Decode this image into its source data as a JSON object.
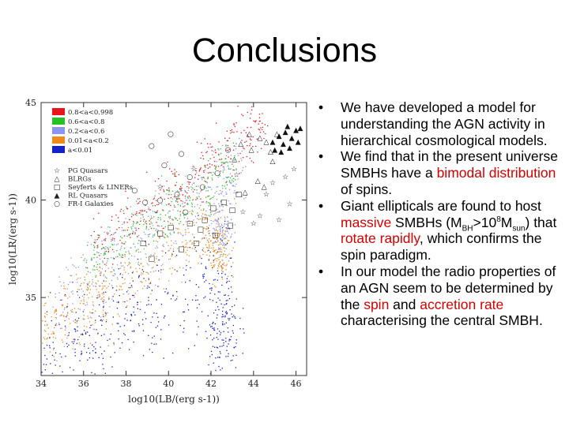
{
  "slide": {
    "title": "Conclusions"
  },
  "bullets": [
    {
      "parts": [
        {
          "text": "We have developed a model for understanding the AGN activity in hierarchical cosmological models."
        }
      ]
    },
    {
      "parts": [
        {
          "text": "We find that in the present universe SMBHs have a "
        },
        {
          "text": "bimodal distribution",
          "highlight": true
        },
        {
          "text": " of spins."
        }
      ]
    },
    {
      "parts": [
        {
          "text": "Giant ellipticals are found to host "
        },
        {
          "text": "massive",
          "highlight": true
        },
        {
          "text": " SMBHs (M"
        },
        {
          "text": "BH",
          "sub": true
        },
        {
          "text": ">10"
        },
        {
          "text": "8",
          "sup": true
        },
        {
          "text": "M"
        },
        {
          "text": "sun",
          "sub": true
        },
        {
          "text": ") that "
        },
        {
          "text": "rotate rapidly",
          "highlight": true
        },
        {
          "text": ", which confirms the spin paradigm."
        }
      ]
    },
    {
      "parts": [
        {
          "text": "In our model the radio properties of an AGN seem to be determined by the "
        },
        {
          "text": "spin",
          "highlight": true
        },
        {
          "text": " and "
        },
        {
          "text": "accretion rate",
          "highlight": true
        },
        {
          "text": " characterising the central SMBH."
        }
      ]
    }
  ],
  "chart_data": {
    "type": "scatter",
    "title": "",
    "xlabel": "log10(LB/(erg s-1))",
    "ylabel": "log10(LR/(erg s-1))",
    "xlim": [
      34,
      46.5
    ],
    "ylim": [
      31,
      45
    ],
    "x_ticks": [
      "34",
      "36",
      "38",
      "40",
      "42",
      "44",
      "46"
    ],
    "y_ticks": [
      "35",
      "40",
      "45"
    ],
    "legend_spin": [
      {
        "label": "0.8<a<0.998",
        "color": "#e8141c"
      },
      {
        "label": "0.6<a<0.8",
        "color": "#22c322"
      },
      {
        "label": "0.2<a<0.6",
        "color": "#8b94f0"
      },
      {
        "label": "0.01<a<0.2",
        "color": "#f08a1c"
      },
      {
        "label": "a<0.01",
        "color": "#1420c8"
      }
    ],
    "legend_markers": [
      {
        "label": "PG Quasars",
        "symbol": "☆"
      },
      {
        "label": "BLRGs",
        "symbol": "△"
      },
      {
        "label": "Seyferts & LINERs",
        "symbol": "□"
      },
      {
        "label": "RL Quasars",
        "symbol": "▲"
      },
      {
        "label": "FR-I Galaxies",
        "symbol": "○"
      }
    ],
    "series": [
      {
        "name": "0.8<a<0.998",
        "color": "#e8141c",
        "line": [
          [
            36.2,
            37.2
          ],
          [
            44.5,
            44.0
          ]
        ],
        "spread": 0.75,
        "n": 340,
        "xrange": [
          36.5,
          44.5
        ]
      },
      {
        "name": "0.6<a<0.8",
        "color": "#22c322",
        "line": [
          [
            35.6,
            36.4
          ],
          [
            43.0,
            41.5
          ]
        ],
        "spread": 0.7,
        "n": 260,
        "xrange": [
          36.0,
          43.2
        ]
      },
      {
        "name": "0.2<a<0.6",
        "color": "#8b94f0",
        "line": [
          [
            34.6,
            34.6
          ],
          [
            43.0,
            41.0
          ]
        ],
        "spread": 1.1,
        "n": 420,
        "xrange": [
          34.6,
          43.5
        ]
      },
      {
        "name": "0.01<a<0.2",
        "color": "#f08a1c",
        "line": [
          [
            34.0,
            33.3
          ],
          [
            42.0,
            38.6
          ]
        ],
        "spread": 0.9,
        "n": 380,
        "xrange": [
          34.0,
          42.2
        ]
      },
      {
        "name": "a<0.01",
        "color": "#1420c8",
        "line": [
          [
            34.0,
            31.8
          ],
          [
            42.5,
            36.5
          ]
        ],
        "spread": 1.3,
        "n": 380,
        "xrange": [
          34.0,
          43.0
        ]
      },
      {
        "name": "0.01<a<0.2 cluster",
        "color": "#f08a1c",
        "cluster": [
          42.3,
          37.5
        ],
        "spread": 0.6,
        "n": 140
      },
      {
        "name": "0.2<a<0.6 cluster",
        "color": "#8b94f0",
        "cluster": [
          42.5,
          38.7
        ],
        "spread": 0.55,
        "n": 100
      },
      {
        "name": "a<0.01 cluster",
        "color": "#1420c8",
        "cluster": [
          42.5,
          33.5
        ],
        "spread": 0.8,
        "n": 140
      }
    ],
    "objects": [
      {
        "class": "PG Quasars",
        "symbol": "☆",
        "points": [
          [
            41.2,
            41.6
          ],
          [
            44.6,
            40.3
          ],
          [
            45.5,
            41.2
          ],
          [
            45.7,
            39.8
          ],
          [
            44.9,
            40.9
          ],
          [
            43.5,
            39.4
          ],
          [
            44.0,
            38.8
          ],
          [
            45.2,
            39.0
          ],
          [
            39.6,
            40.7
          ],
          [
            43.2,
            41.3
          ],
          [
            45.9,
            41.6
          ],
          [
            44.3,
            39.2
          ]
        ]
      },
      {
        "class": "BLRGs",
        "symbol": "△",
        "points": [
          [
            43.8,
            43.4
          ],
          [
            44.3,
            43.2
          ],
          [
            44.6,
            43.0
          ],
          [
            43.9,
            42.6
          ],
          [
            44.8,
            42.5
          ],
          [
            45.1,
            43.4
          ],
          [
            43.4,
            42.9
          ],
          [
            44.2,
            41.0
          ],
          [
            44.5,
            40.7
          ],
          [
            43.6,
            40.4
          ],
          [
            44.9,
            42.0
          ],
          [
            43.1,
            42.1
          ]
        ]
      },
      {
        "class": "Seyferts & LINERs",
        "symbol": "□",
        "points": [
          [
            40.1,
            38.6
          ],
          [
            41.0,
            38.8
          ],
          [
            41.7,
            39.0
          ],
          [
            42.2,
            38.2
          ],
          [
            43.0,
            39.5
          ],
          [
            42.6,
            39.9
          ],
          [
            39.2,
            37.0
          ],
          [
            40.6,
            37.5
          ],
          [
            41.3,
            37.8
          ],
          [
            42.9,
            38.7
          ],
          [
            39.6,
            38.3
          ],
          [
            43.3,
            40.3
          ],
          [
            42.1,
            39.6
          ],
          [
            38.8,
            37.8
          ],
          [
            41.5,
            38.5
          ]
        ]
      },
      {
        "class": "RL Quasars",
        "symbol": "▲",
        "points": [
          [
            44.9,
            43.0
          ],
          [
            45.2,
            43.3
          ],
          [
            45.5,
            43.5
          ],
          [
            45.8,
            43.2
          ],
          [
            46.0,
            43.6
          ],
          [
            45.4,
            42.9
          ],
          [
            45.7,
            42.7
          ],
          [
            46.1,
            43.0
          ],
          [
            45.0,
            42.6
          ],
          [
            46.2,
            43.7
          ],
          [
            45.6,
            43.8
          ],
          [
            45.3,
            42.5
          ]
        ]
      },
      {
        "class": "FR-I Galaxies",
        "symbol": "○",
        "points": [
          [
            39.2,
            42.8
          ],
          [
            40.1,
            43.4
          ],
          [
            40.6,
            42.4
          ],
          [
            38.4,
            40.5
          ],
          [
            39.8,
            41.8
          ],
          [
            41.0,
            41.2
          ],
          [
            40.4,
            40.3
          ],
          [
            42.3,
            41.4
          ],
          [
            38.9,
            39.9
          ],
          [
            41.6,
            40.7
          ],
          [
            39.6,
            40.0
          ],
          [
            42.8,
            42.6
          ],
          [
            40.8,
            39.4
          ]
        ]
      }
    ]
  }
}
